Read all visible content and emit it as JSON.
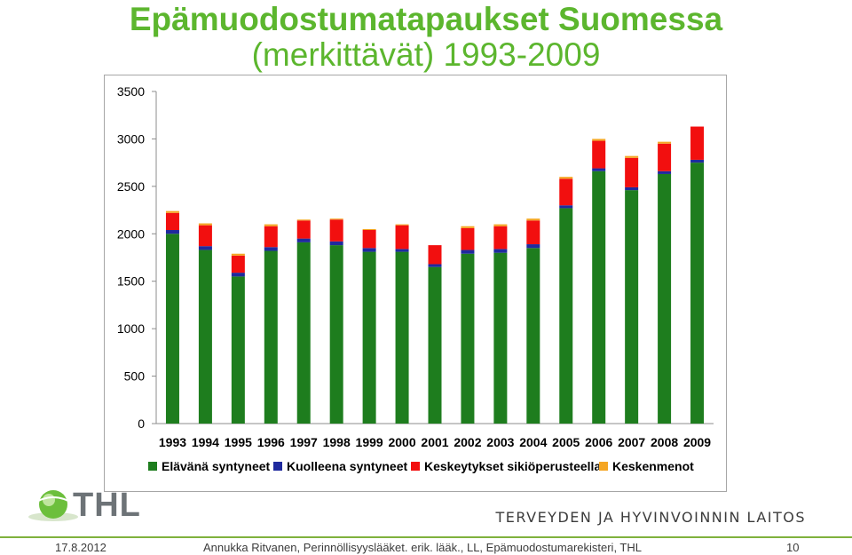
{
  "slide": {
    "title_line1": "Epämuodostumatapaukset Suomessa",
    "title_line2": "(merkittävät) 1993-2009",
    "logo_text": "THL",
    "org_name": "TERVEYDEN JA HYVINVOINNIN LAITOS",
    "footer_date": "17.8.2012",
    "footer_credit": "Annukka Ritvanen, Perinnöllisyyslääket. erik. lääk., LL, Epämuodostumarekisteri, THL",
    "page_number": "10"
  },
  "colors": {
    "title": "#5cb62e",
    "accent": "#7fb13d"
  },
  "chart_data": {
    "type": "bar",
    "stacked": true,
    "categories": [
      "1993",
      "1994",
      "1995",
      "1996",
      "1997",
      "1998",
      "1999",
      "2000",
      "2001",
      "2002",
      "2003",
      "2004",
      "2005",
      "2006",
      "2007",
      "2008",
      "2009"
    ],
    "series": [
      {
        "name": "Elävänä syntyneet",
        "color": "#1e7d1e",
        "values": [
          2000,
          1830,
          1550,
          1820,
          1910,
          1880,
          1810,
          1810,
          1650,
          1790,
          1800,
          1850,
          2270,
          2660,
          2460,
          2630,
          2750
        ]
      },
      {
        "name": "Kuolleena syntyneet",
        "color": "#1f2a9e",
        "values": [
          40,
          40,
          40,
          40,
          40,
          40,
          40,
          30,
          30,
          40,
          40,
          40,
          30,
          30,
          30,
          30,
          30
        ]
      },
      {
        "name": "Keskeytykset sikiöperusteella",
        "color": "#f20f0f",
        "values": [
          180,
          220,
          180,
          220,
          190,
          230,
          190,
          250,
          200,
          230,
          240,
          250,
          280,
          290,
          310,
          290,
          350
        ]
      },
      {
        "name": "Keskenmenot",
        "color": "#f5a623",
        "values": [
          20,
          20,
          20,
          20,
          10,
          10,
          10,
          10,
          0,
          20,
          20,
          20,
          20,
          20,
          20,
          20,
          0
        ]
      }
    ],
    "ylim": [
      0,
      3500
    ],
    "yticks": [
      "0",
      "500",
      "1000",
      "1500",
      "2000",
      "2500",
      "3000",
      "3500"
    ],
    "legend_position": "bottom",
    "grid": false
  }
}
